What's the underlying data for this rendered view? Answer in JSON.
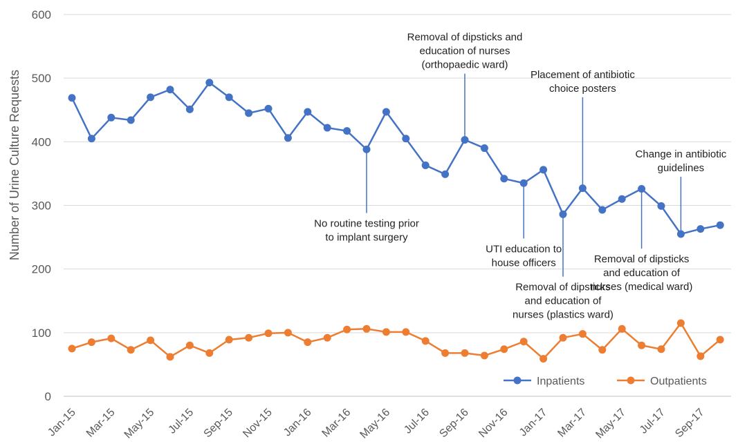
{
  "chart_data": {
    "type": "line",
    "ylabel": "Number of Urine Culture Requests",
    "ylim": [
      0,
      600
    ],
    "yticks": [
      0,
      100,
      200,
      300,
      400,
      500,
      600
    ],
    "grid": "horizontal",
    "legend_position": "bottom-right",
    "categories": [
      "Jan-15",
      "Feb-15",
      "Mar-15",
      "Apr-15",
      "May-15",
      "Jun-15",
      "Jul-15",
      "Aug-15",
      "Sep-15",
      "Oct-15",
      "Nov-15",
      "Dec-15",
      "Jan-16",
      "Feb-16",
      "Mar-16",
      "Apr-16",
      "May-16",
      "Jun-16",
      "Jul-16",
      "Aug-16",
      "Sep-16",
      "Oct-16",
      "Nov-16",
      "Dec-16",
      "Jan-17",
      "Feb-17",
      "Mar-17",
      "Apr-17",
      "May-17",
      "Jun-17",
      "Jul-17",
      "Aug-17",
      "Sep-17",
      "Oct-17"
    ],
    "shown_tick_labels": [
      "Jan-15",
      "Mar-15",
      "May-15",
      "Jul-15",
      "Sep-15",
      "Nov-15",
      "Jan-16",
      "Mar-16",
      "May-16",
      "Jul-16",
      "Sep-16",
      "Nov-16",
      "Jan-17",
      "Mar-17",
      "May-17",
      "Jul-17",
      "Sep-17"
    ],
    "series": [
      {
        "name": "Inpatients",
        "color": "#4472C4",
        "values": [
          469,
          405,
          438,
          434,
          470,
          482,
          451,
          493,
          470,
          445,
          452,
          406,
          447,
          422,
          417,
          388,
          447,
          405,
          363,
          349,
          403,
          390,
          342,
          335,
          356,
          286,
          327,
          293,
          310,
          326,
          299,
          255,
          263,
          269
        ]
      },
      {
        "name": "Outpatients",
        "color": "#ED7D31",
        "values": [
          75,
          85,
          91,
          73,
          88,
          62,
          80,
          68,
          89,
          92,
          99,
          100,
          85,
          92,
          105,
          106,
          101,
          101,
          87,
          68,
          68,
          64,
          74,
          86,
          59,
          92,
          98,
          73,
          106,
          80,
          74,
          115,
          63,
          89
        ]
      }
    ],
    "annotations": [
      {
        "lines": [
          "No routine testing prior",
          "to implant surgery"
        ],
        "month": "Apr-16",
        "from_value": 388,
        "to_value": 288
      },
      {
        "lines": [
          "Removal of dipsticks and",
          "education of nurses",
          "(orthopaedic ward)"
        ],
        "month": "Sep-16",
        "from_value": 403,
        "to_value": 507
      },
      {
        "lines": [
          "UTI education to",
          "house officers"
        ],
        "month": "Dec-16",
        "from_value": 335,
        "to_value": 248
      },
      {
        "lines": [
          "Removal of dipsticks",
          "and education of",
          "nurses (plastics ward)"
        ],
        "month": "Feb-17",
        "from_value": 286,
        "to_value": 188
      },
      {
        "lines": [
          "Placement of antibiotic",
          "choice posters"
        ],
        "month": "Mar-17",
        "from_value": 327,
        "to_value": 470
      },
      {
        "lines": [
          "Change in antibiotic",
          "guidelines"
        ],
        "month": "Aug-17",
        "from_value": 255,
        "to_value": 345
      },
      {
        "lines": [
          "Removal of dipsticks",
          "and education of",
          "nurses (medical ward)"
        ],
        "month": "Jun-17",
        "from_value": 326,
        "to_value": 232
      }
    ]
  }
}
